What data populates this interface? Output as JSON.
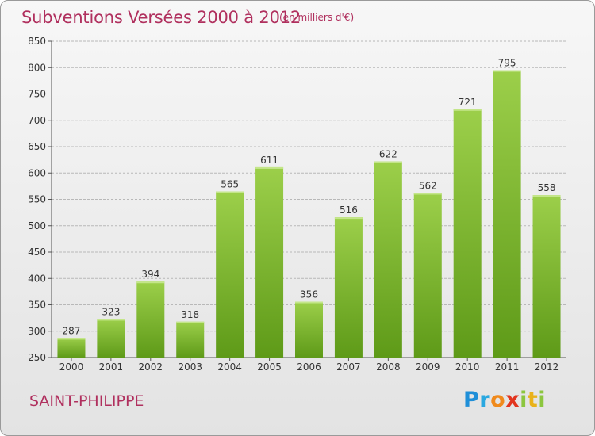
{
  "header": {
    "title": "Subventions Versées 2000 à 2012",
    "subtitle": "(en milliers d'€)"
  },
  "footer": {
    "commune": "SAINT-PHILIPPE",
    "logo_letters": [
      "P",
      "r",
      "o",
      "x",
      "i",
      "t",
      "i"
    ]
  },
  "colors": {
    "title": "#b0305e",
    "bar_top": "#9ccf4a",
    "bar_bottom": "#5e9a18",
    "grid": "#b8b8b8"
  },
  "chart_data": {
    "type": "bar",
    "title": "Subventions Versées 2000 à 2012",
    "subtitle": "(en milliers d'€)",
    "categories": [
      "2000",
      "2001",
      "2002",
      "2003",
      "2004",
      "2005",
      "2006",
      "2007",
      "2008",
      "2009",
      "2010",
      "2011",
      "2012"
    ],
    "values": [
      287,
      323,
      394,
      318,
      565,
      611,
      356,
      516,
      622,
      562,
      721,
      795,
      558
    ],
    "ylim": [
      250,
      850
    ],
    "yticks": [
      250,
      300,
      350,
      400,
      450,
      500,
      550,
      600,
      650,
      700,
      750,
      800,
      850
    ],
    "grid": true,
    "xlabel": "",
    "ylabel": ""
  }
}
